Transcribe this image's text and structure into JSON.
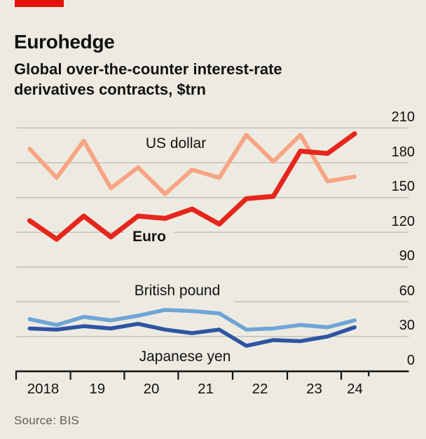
{
  "header": {
    "title": "Eurohedge",
    "subtitle_line1": "Global over-the-counter interest-rate",
    "subtitle_line2": "derivatives contracts, $trn"
  },
  "source": "Source: BIS",
  "colors": {
    "background": "#EDEBE1",
    "accent_red": "#E3120B",
    "us_dollar": "#F7A584",
    "euro": "#E6261D",
    "british_pound": "#6FA5D6",
    "japanese_yen": "#2E54A3",
    "gridline": "#BFBEB4",
    "axis": "#121212",
    "source_text": "#5E5E56"
  },
  "chart_data": {
    "type": "line",
    "title": "Eurohedge",
    "subtitle": "Global over-the-counter interest-rate derivatives contracts, $trn",
    "x_unit": "half-year",
    "x": [
      "2018 H1",
      "2018 H2",
      "2019 H1",
      "2019 H2",
      "2020 H1",
      "2020 H2",
      "2021 H1",
      "2021 H2",
      "2022 H1",
      "2022 H2",
      "2023 H1",
      "2023 H2",
      "2024 H1"
    ],
    "x_tick_labels": [
      "2018",
      "19",
      "20",
      "21",
      "22",
      "23",
      "24"
    ],
    "y_ticks": [
      0,
      30,
      60,
      90,
      120,
      150,
      180,
      210
    ],
    "ylim": [
      0,
      210
    ],
    "grid": true,
    "legend_position": "inline-labels",
    "series": [
      {
        "name": "US dollar",
        "color": "#F7A584",
        "values": [
          192,
          167,
          199,
          158,
          176,
          153,
          174,
          167,
          204,
          181,
          204,
          164,
          168
        ]
      },
      {
        "name": "Euro",
        "color": "#E6261D",
        "values": [
          130,
          114,
          134,
          116,
          134,
          132,
          140,
          127,
          149,
          151,
          190,
          188,
          205
        ]
      },
      {
        "name": "British pound",
        "color": "#6FA5D6",
        "values": [
          45,
          40,
          47,
          44,
          48,
          53,
          52,
          50,
          36,
          37,
          40,
          38,
          44
        ]
      },
      {
        "name": "Japanese yen",
        "color": "#2E54A3",
        "values": [
          37,
          36,
          39,
          37,
          41,
          36,
          33,
          36,
          22,
          27,
          26,
          30,
          38
        ]
      }
    ]
  }
}
